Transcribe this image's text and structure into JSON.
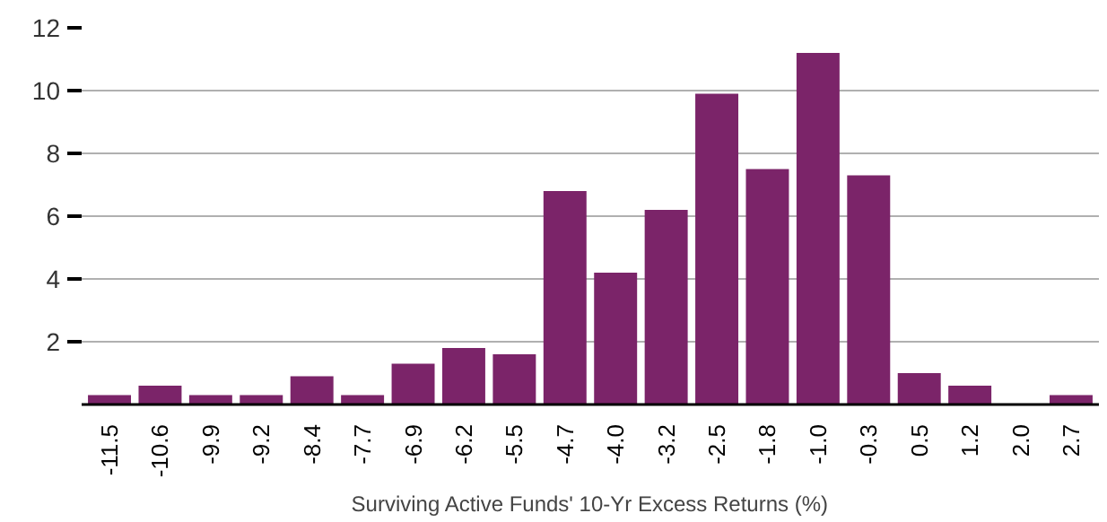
{
  "chart_data": {
    "type": "bar",
    "xlabel": "Surviving Active Funds' 10-Yr Excess Returns (%)",
    "categories": [
      "-11.5",
      "-10.6",
      "-9.9",
      "-9.2",
      "-8.4",
      "-7.7",
      "-6.9",
      "-6.2",
      "-5.5",
      "-4.7",
      "-4.0",
      "-3.2",
      "-2.5",
      "-1.8",
      "-1.0",
      "-0.3",
      "0.5",
      "1.2",
      "2.0",
      "2.7"
    ],
    "values": [
      0.3,
      0.6,
      0.3,
      0.3,
      0.9,
      0.3,
      1.3,
      1.8,
      1.6,
      6.8,
      4.2,
      6.2,
      9.9,
      7.5,
      11.2,
      7.3,
      1.0,
      0.6,
      0,
      0.3
    ],
    "color": "#7b2469",
    "ylim": [
      0,
      12
    ],
    "yticks": [
      2,
      4,
      6,
      8,
      10,
      12
    ],
    "grid": "y"
  }
}
